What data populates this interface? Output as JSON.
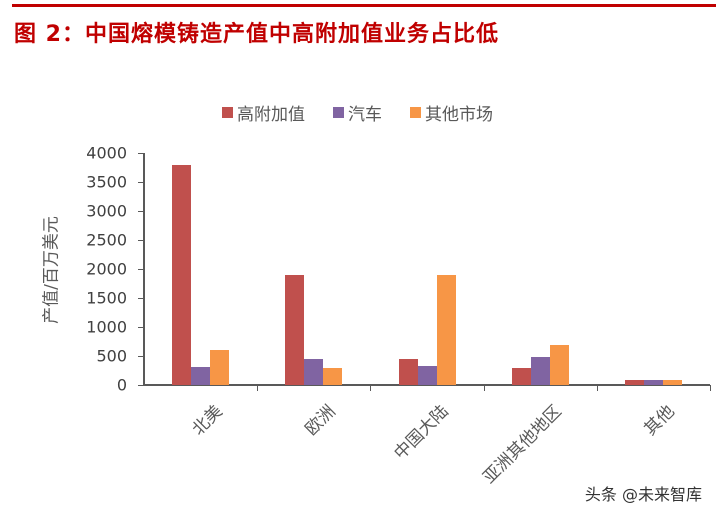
{
  "header": {
    "title": "图 2：中国熔模铸造产值中高附加值业务占比低"
  },
  "watermark": "头条 @未来智库",
  "colors": {
    "title": "#c00000",
    "series_high_value": "#c0504d",
    "series_auto": "#8064a2",
    "series_other": "#f79646"
  },
  "chart_data": {
    "type": "bar",
    "title": "图 2：中国熔模铸造产值中高附加值业务占比低",
    "xlabel": "",
    "ylabel": "产值/百万美元",
    "ylim": [
      0,
      4000
    ],
    "yticks": [
      "0",
      "500",
      "1000",
      "1500",
      "2000",
      "2500",
      "3000",
      "3500",
      "4000"
    ],
    "categories": [
      "北美",
      "欧洲",
      "中国大陆",
      "亚洲其他地区",
      "其他"
    ],
    "series": [
      {
        "name": "高附加值",
        "color": "#c0504d",
        "values": [
          3800,
          1900,
          450,
          300,
          90
        ]
      },
      {
        "name": "汽车",
        "color": "#8064a2",
        "values": [
          310,
          450,
          330,
          480,
          90
        ]
      },
      {
        "name": "其他市场",
        "color": "#f79646",
        "values": [
          600,
          300,
          1900,
          690,
          90
        ]
      }
    ],
    "legend_position": "top",
    "grid": false
  }
}
